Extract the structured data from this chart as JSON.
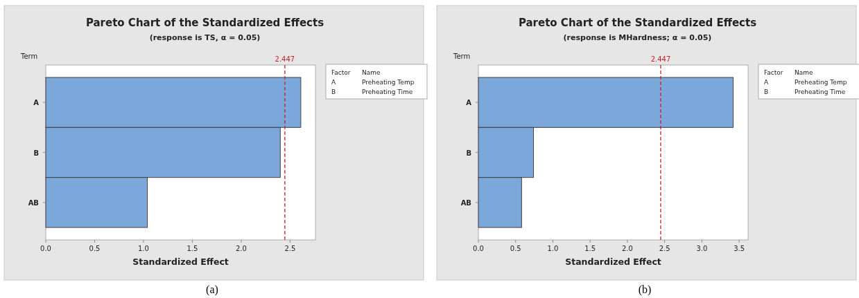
{
  "chart_data": [
    {
      "type": "bar",
      "orientation": "horizontal",
      "title": "Pareto Chart of the Standardized Effects",
      "subtitle": "(response is TS, α = 0.05)",
      "xlabel": "Standardized Effect",
      "ylabel": "Term",
      "categories": [
        "A",
        "B",
        "AB"
      ],
      "values": [
        2.61,
        2.4,
        1.04
      ],
      "color": "#7ba7da",
      "xlim": [
        0,
        2.76
      ],
      "xticks": [
        {
          "value": 0,
          "label": "0.0"
        },
        0.5,
        {
          "value": 1,
          "label": "1.0"
        },
        1.5,
        {
          "value": 2,
          "label": "2.0"
        },
        2.5
      ],
      "ref_lines": [
        {
          "axis": "x",
          "value": 2.447,
          "label": "2.447",
          "color": "#c8202a",
          "line_style": "dashed"
        }
      ],
      "annotations": [
        "Factor",
        "Name",
        "A",
        "Preheating Temp",
        "B",
        "Preheating Time",
        "(a)"
      ]
    },
    {
      "type": "bar",
      "orientation": "horizontal",
      "title": "Pareto Chart of the Standardized Effects",
      "subtitle": "(response is MHardness; α = 0.05)",
      "xlabel": "Standardized Effect",
      "ylabel": "Term",
      "categories": [
        "A",
        "B",
        "AB"
      ],
      "values": [
        3.42,
        0.74,
        0.58
      ],
      "color": "#7ba7da",
      "xlim": [
        0,
        3.62
      ],
      "xticks": [
        {
          "value": 0,
          "label": "0.0"
        },
        0.5,
        {
          "value": 1,
          "label": "1.0"
        },
        1.5,
        {
          "value": 2,
          "label": "2.0"
        },
        2.5,
        {
          "value": 3,
          "label": "3.0"
        },
        3.5
      ],
      "ref_lines": [
        {
          "axis": "x",
          "value": 2.447,
          "label": "2.447",
          "color": "#c8202a",
          "line_style": "dashed"
        }
      ],
      "annotations": [
        "Factor",
        "Name",
        "A",
        "Preheating Temp",
        "B",
        "Preheating Time",
        "(b)"
      ]
    }
  ]
}
